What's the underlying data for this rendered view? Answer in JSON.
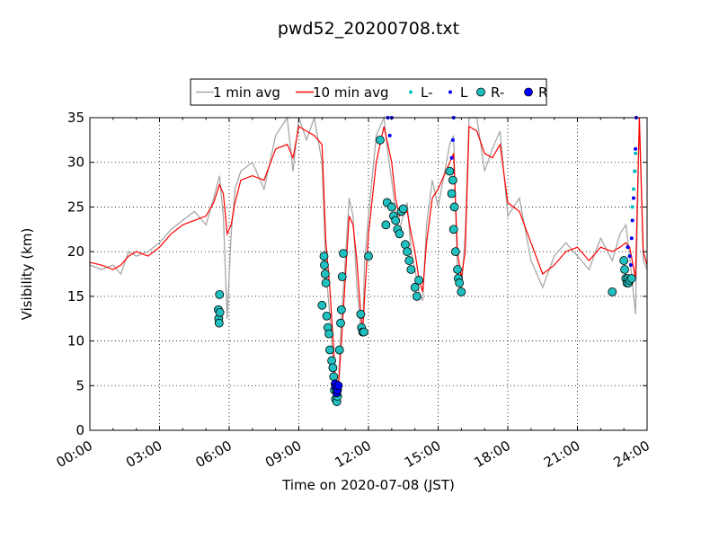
{
  "chart_data": {
    "type": "line",
    "title": "pwd52_20200708.txt",
    "xlabel": "Time on 2020-07-08 (JST)",
    "ylabel": "Visibility (km)",
    "xlim": [
      "00:00",
      "24:00"
    ],
    "ylim": [
      0,
      35
    ],
    "x_tick_labels": [
      "00:00",
      "03:00",
      "06:00",
      "09:00",
      "12:00",
      "15:00",
      "18:00",
      "21:00",
      "24:00"
    ],
    "y_tick_labels": [
      "0",
      "5",
      "10",
      "15",
      "20",
      "25",
      "30",
      "35"
    ],
    "grid": true,
    "legend_position": "top-center",
    "legend": [
      "1 min avg",
      "10 min avg",
      "L-",
      "L",
      "R-",
      "R"
    ],
    "colors": {
      "1 min avg": "#a8a8a8",
      "10 min avg": "#ff0000",
      "L-": "#00bfbf",
      "L": "#0000ff",
      "R-": "#20c0c0",
      "R": "#0000ff"
    },
    "series": [
      {
        "name": "10 min avg",
        "x": [
          "00:00",
          "00:30",
          "01:00",
          "01:20",
          "01:40",
          "02:00",
          "02:30",
          "03:00",
          "03:30",
          "04:00",
          "04:30",
          "05:00",
          "05:20",
          "05:35",
          "05:45",
          "05:55",
          "06:05",
          "06:15",
          "06:30",
          "07:00",
          "07:30",
          "08:00",
          "08:30",
          "08:45",
          "09:00",
          "09:20",
          "09:40",
          "10:00",
          "10:10",
          "10:20",
          "10:30",
          "10:35",
          "10:40",
          "10:45",
          "10:50",
          "11:00",
          "11:10",
          "11:20",
          "11:30",
          "11:40",
          "11:45",
          "11:50",
          "12:00",
          "12:20",
          "12:40",
          "12:50",
          "13:00",
          "13:10",
          "13:20",
          "13:40",
          "13:50",
          "14:00",
          "14:10",
          "14:20",
          "14:30",
          "14:45",
          "15:00",
          "15:30",
          "15:40",
          "15:50",
          "16:00",
          "16:10",
          "16:20",
          "16:40",
          "17:00",
          "17:20",
          "17:40",
          "18:00",
          "18:30",
          "19:00",
          "19:30",
          "20:00",
          "20:30",
          "21:00",
          "21:30",
          "22:00",
          "22:30",
          "22:50",
          "23:05",
          "23:15",
          "23:30",
          "23:40",
          "23:50",
          "24:00"
        ],
        "values": [
          18.8,
          18.5,
          18.0,
          18.5,
          19.5,
          20.0,
          19.5,
          20.5,
          22.0,
          23.0,
          23.5,
          24.0,
          25.5,
          27.5,
          26.5,
          22.0,
          23.0,
          25.5,
          28.0,
          28.5,
          28.0,
          31.5,
          32.0,
          30.5,
          34.0,
          33.5,
          33.0,
          32.0,
          21.0,
          16.0,
          9.0,
          5.0,
          4.0,
          6.5,
          10.0,
          17.0,
          24.0,
          23.0,
          19.0,
          13.0,
          11.0,
          15.0,
          22.0,
          30.0,
          34.0,
          32.0,
          30.0,
          26.0,
          24.0,
          24.5,
          22.0,
          20.0,
          17.0,
          15.5,
          21.0,
          26.0,
          27.0,
          30.0,
          31.0,
          20.0,
          17.0,
          20.0,
          34.0,
          33.5,
          31.0,
          30.5,
          32.0,
          25.5,
          24.5,
          21.0,
          17.5,
          18.5,
          20.0,
          20.5,
          19.0,
          20.5,
          20.0,
          20.5,
          21.0,
          20.5,
          17.0,
          35.0,
          20.0,
          18.5
        ]
      },
      {
        "name": "1 min avg",
        "x": [
          "00:00",
          "00:30",
          "01:00",
          "01:20",
          "01:40",
          "02:00",
          "02:30",
          "03:00",
          "03:30",
          "04:00",
          "04:30",
          "05:00",
          "05:20",
          "05:35",
          "05:45",
          "05:55",
          "06:05",
          "06:15",
          "06:30",
          "07:00",
          "07:30",
          "08:00",
          "08:30",
          "08:45",
          "09:00",
          "09:20",
          "09:40",
          "10:00",
          "10:10",
          "10:20",
          "10:30",
          "10:35",
          "10:40",
          "10:45",
          "10:50",
          "11:00",
          "11:10",
          "11:20",
          "11:30",
          "11:40",
          "11:45",
          "11:50",
          "12:00",
          "12:20",
          "12:40",
          "12:50",
          "13:00",
          "13:10",
          "13:20",
          "13:40",
          "13:50",
          "14:00",
          "14:10",
          "14:20",
          "14:30",
          "14:45",
          "15:00",
          "15:30",
          "15:40",
          "15:50",
          "16:00",
          "16:10",
          "16:20",
          "16:40",
          "17:00",
          "17:20",
          "17:40",
          "18:00",
          "18:30",
          "19:00",
          "19:30",
          "20:00",
          "20:30",
          "21:00",
          "21:30",
          "22:00",
          "22:30",
          "22:50",
          "23:05",
          "23:15",
          "23:30",
          "23:40",
          "23:50",
          "24:00"
        ],
        "values": [
          18.5,
          18.0,
          18.5,
          17.5,
          20.0,
          19.5,
          20.0,
          21.0,
          22.5,
          23.5,
          24.5,
          23.0,
          26.0,
          28.5,
          24.0,
          12.5,
          22.0,
          27.0,
          29.0,
          30.0,
          27.0,
          33.0,
          35.0,
          29.0,
          35.0,
          32.5,
          35.0,
          30.0,
          18.0,
          13.0,
          7.0,
          4.0,
          3.5,
          8.0,
          12.5,
          19.0,
          26.0,
          24.0,
          16.0,
          11.5,
          10.5,
          19.0,
          24.0,
          33.0,
          35.0,
          31.0,
          28.0,
          24.5,
          22.5,
          25.5,
          20.0,
          18.0,
          15.5,
          14.5,
          23.0,
          28.0,
          25.0,
          32.0,
          33.0,
          17.5,
          15.5,
          22.0,
          35.0,
          35.0,
          29.0,
          31.5,
          33.5,
          24.0,
          26.0,
          19.0,
          16.0,
          19.5,
          21.0,
          19.5,
          18.0,
          21.5,
          19.0,
          22.0,
          23.0,
          19.5,
          13.0,
          35.0,
          19.0,
          18.0
        ]
      },
      {
        "name": "R-",
        "x": [
          "05:32",
          "05:33",
          "05:34",
          "05:35",
          "05:36",
          "10:00",
          "10:05",
          "10:06",
          "10:08",
          "10:10",
          "10:12",
          "10:15",
          "10:18",
          "10:20",
          "10:25",
          "10:28",
          "10:30",
          "10:32",
          "10:35",
          "10:38",
          "10:40",
          "10:45",
          "10:48",
          "10:50",
          "10:52",
          "10:55",
          "11:40",
          "11:42",
          "11:45",
          "11:48",
          "12:00",
          "12:30",
          "12:45",
          "12:48",
          "13:00",
          "13:05",
          "13:10",
          "13:15",
          "13:20",
          "13:25",
          "13:30",
          "13:35",
          "13:40",
          "13:45",
          "13:50",
          "14:00",
          "14:05",
          "14:10",
          "15:30",
          "15:35",
          "15:38",
          "15:40",
          "15:42",
          "15:45",
          "15:50",
          "15:52",
          "15:55",
          "16:00",
          "22:30",
          "23:00",
          "23:02",
          "23:05",
          "23:08",
          "23:10",
          "23:12",
          "23:15",
          "23:20"
        ],
        "values": [
          13.5,
          12.5,
          12.0,
          15.2,
          13.2,
          14.0,
          19.5,
          18.5,
          17.5,
          16.5,
          12.8,
          11.5,
          10.8,
          9.0,
          7.8,
          7.0,
          6.0,
          4.5,
          3.5,
          3.2,
          3.8,
          9.0,
          12.0,
          13.5,
          17.2,
          19.8,
          13.0,
          11.5,
          11.0,
          11.0,
          19.5,
          32.5,
          23.0,
          25.5,
          25.0,
          24.0,
          23.5,
          22.5,
          22.0,
          24.5,
          24.8,
          20.8,
          20.0,
          19.0,
          18.0,
          16.0,
          15.0,
          16.8,
          29.0,
          26.5,
          28.0,
          22.5,
          25.0,
          20.0,
          18.0,
          17.0,
          16.5,
          15.5,
          15.5,
          19.0,
          18.0,
          17.0,
          16.5,
          17.0,
          16.5,
          16.8,
          17.0
        ]
      },
      {
        "name": "R",
        "x": [
          "10:34",
          "10:36",
          "10:38",
          "10:40",
          "10:42"
        ],
        "values": [
          5.2,
          4.8,
          4.2,
          4.5,
          5.0
        ]
      },
      {
        "name": "L",
        "x": [
          "12:50",
          "12:55",
          "13:00",
          "15:35",
          "15:38",
          "15:40",
          "23:10",
          "23:15",
          "23:18",
          "23:20",
          "23:22",
          "23:25",
          "23:28",
          "23:30",
          "23:32"
        ],
        "values": [
          35.0,
          33.0,
          35.0,
          30.5,
          32.5,
          35.0,
          20.5,
          19.5,
          18.5,
          21.5,
          23.5,
          26.0,
          29.0,
          31.5,
          35.0
        ]
      },
      {
        "name": "L-",
        "x": [
          "23:22",
          "23:25",
          "23:28",
          "23:30"
        ],
        "values": [
          25.0,
          27.0,
          29.0,
          31.0
        ]
      }
    ]
  }
}
